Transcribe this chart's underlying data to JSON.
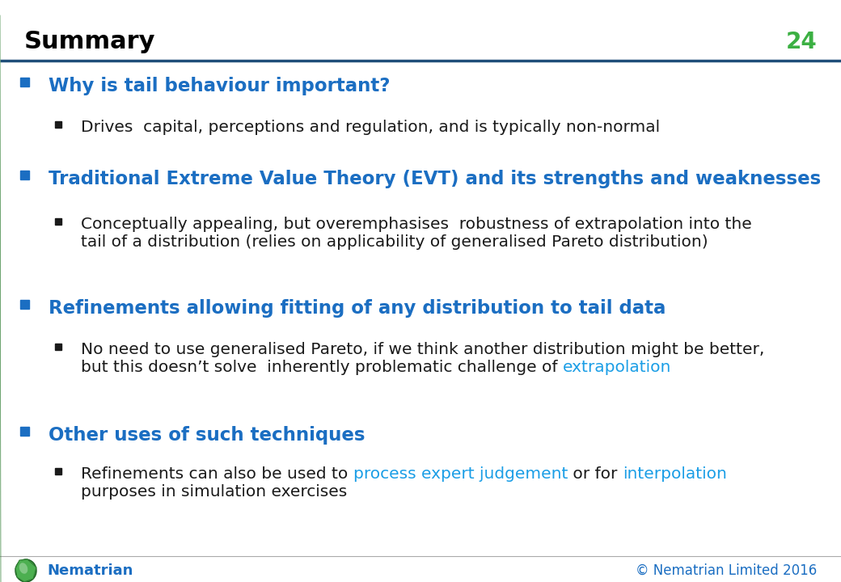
{
  "title": "Summary",
  "slide_number": "24",
  "title_color": "#000000",
  "title_fontsize": 22,
  "slide_number_color": "#3CB043",
  "slide_number_fontsize": 20,
  "header_line_color": "#1F4E79",
  "background_color": "#FFFFFF",
  "blue_heading": "#1B6EC2",
  "black_text": "#1A1A1A",
  "orange_highlight": "#E8820C",
  "cyan_highlight": "#1B9EE6",
  "footer_text": "Nematrian",
  "footer_right": "© Nematrian Limited 2016",
  "footer_color": "#1B6EC2",
  "l1_bullet_color": "#1B6EC2",
  "l2_bullet_color": "#1A1A1A",
  "items": [
    {
      "level": 1,
      "parts": [
        {
          "text": "Why is tail behaviour important?",
          "color": "#1B6EC2"
        }
      ],
      "fontsize": 16.5,
      "bold": true
    },
    {
      "level": 2,
      "parts": [
        {
          "text": "Drives  capital, perceptions and regulation, and is typically non-normal",
          "color": "#1A1A1A"
        }
      ],
      "fontsize": 14.5,
      "bold": false
    },
    {
      "level": 1,
      "parts": [
        {
          "text": "Traditional Extreme Value Theory (EVT) and its strengths and weaknesses",
          "color": "#1B6EC2"
        }
      ],
      "fontsize": 16.5,
      "bold": true
    },
    {
      "level": 2,
      "parts": [
        {
          "text": "Conceptually appealing, but overemphasises  robustness of extrapolation into the\ntail of a distribution (relies on applicability of generalised Pareto distribution)",
          "color": "#1A1A1A"
        }
      ],
      "fontsize": 14.5,
      "bold": false
    },
    {
      "level": 1,
      "parts": [
        {
          "text": "Refinements allowing fitting of any distribution to tail data",
          "color": "#1B6EC2"
        }
      ],
      "fontsize": 16.5,
      "bold": true
    },
    {
      "level": 2,
      "parts": [
        {
          "text": "No need to use generalised Pareto, if we think another distribution might be better,\nbut this doesn’t solve  inherently problematic challenge of ",
          "color": "#1A1A1A"
        },
        {
          "text": "extrapolation",
          "color": "#1B9EE6"
        }
      ],
      "fontsize": 14.5,
      "bold": false
    },
    {
      "level": 1,
      "parts": [
        {
          "text": "Other uses of such techniques",
          "color": "#1B6EC2"
        }
      ],
      "fontsize": 16.5,
      "bold": true
    },
    {
      "level": 2,
      "parts": [
        {
          "text": "Refinements can also be used to ",
          "color": "#1A1A1A"
        },
        {
          "text": "process expert judgement",
          "color": "#1B9EE6"
        },
        {
          "text": " or for ",
          "color": "#1A1A1A"
        },
        {
          "text": "interpolation",
          "color": "#1B9EE6"
        },
        {
          "text": "\npurposes in simulation exercises",
          "color": "#1A1A1A"
        }
      ],
      "fontsize": 14.5,
      "bold": false
    }
  ]
}
